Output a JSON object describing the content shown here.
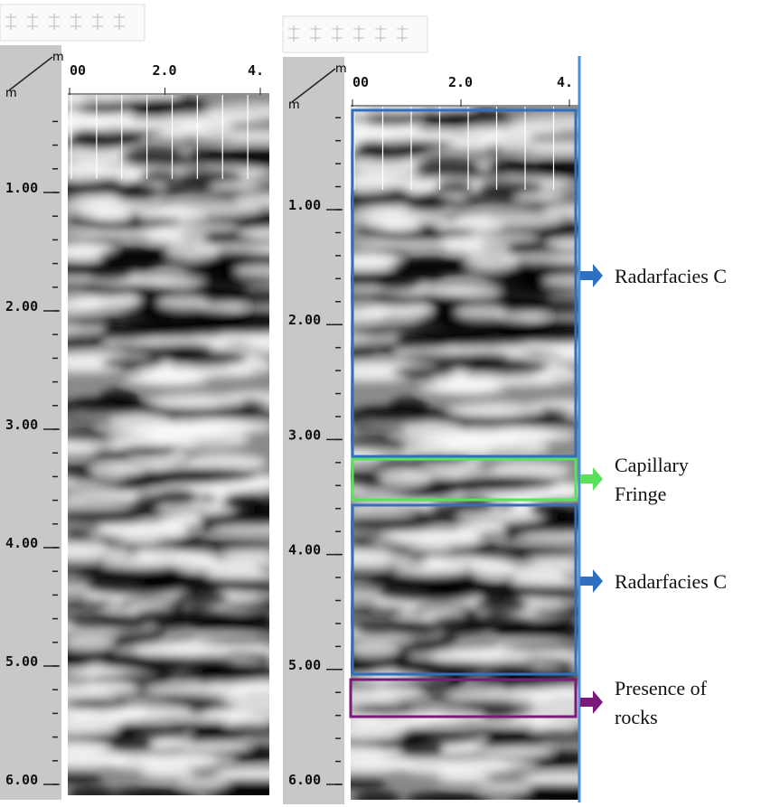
{
  "left_panel": {
    "x_unit": "m",
    "y_unit": "m",
    "x_ticks": [
      "00",
      "2.0",
      "4."
    ],
    "y_ticks": [
      "1.00",
      "2.00",
      "3.00",
      "4.00",
      "5.00",
      "6.00"
    ]
  },
  "right_panel": {
    "x_unit": "m",
    "y_unit": "m",
    "x_ticks": [
      "00",
      "2.0",
      "4."
    ],
    "y_ticks": [
      "1.00",
      "2.00",
      "3.00",
      "4.00",
      "5.00",
      "6.00"
    ],
    "annotations": [
      {
        "label": "Radarfacies C",
        "color": "#2f6fc0"
      },
      {
        "label": "Capillary Fringe",
        "color": "#5be05b"
      },
      {
        "label": "Radarfacies C",
        "color": "#2f6fc0"
      },
      {
        "label": "Presence of rocks",
        "color": "#7a1a7a"
      }
    ]
  }
}
